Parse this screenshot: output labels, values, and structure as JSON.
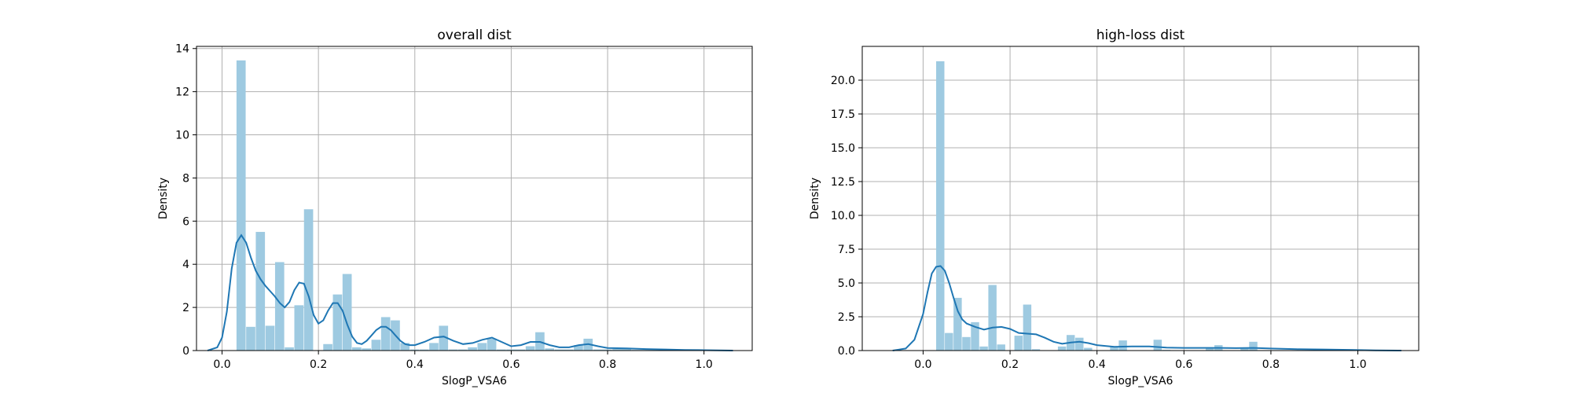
{
  "chart_data": [
    {
      "type": "histogram",
      "title": "overall dist",
      "xlabel": "SlogP_VSA6",
      "ylabel": "Density",
      "xlim": [
        -0.053,
        1.1
      ],
      "ylim": [
        0,
        14.1
      ],
      "xticks": [
        0.0,
        0.2,
        0.4,
        0.6,
        0.8,
        1.0
      ],
      "xtick_labels": [
        "0.0",
        "0.2",
        "0.4",
        "0.6",
        "0.8",
        "1.0"
      ],
      "yticks": [
        0,
        2,
        4,
        6,
        8,
        10,
        12,
        14
      ],
      "ytick_labels": [
        "0",
        "2",
        "4",
        "6",
        "8",
        "10",
        "12",
        "14"
      ],
      "grid": true,
      "bar_color": "#9ecae1",
      "line_color": "#1f77b4",
      "bins": [
        {
          "x0": 0.03,
          "x1": 0.05,
          "y": 13.45
        },
        {
          "x0": 0.05,
          "x1": 0.07,
          "y": 1.1
        },
        {
          "x0": 0.07,
          "x1": 0.09,
          "y": 5.5
        },
        {
          "x0": 0.09,
          "x1": 0.11,
          "y": 1.15
        },
        {
          "x0": 0.11,
          "x1": 0.13,
          "y": 4.1
        },
        {
          "x0": 0.13,
          "x1": 0.15,
          "y": 0.15
        },
        {
          "x0": 0.15,
          "x1": 0.17,
          "y": 2.1
        },
        {
          "x0": 0.17,
          "x1": 0.19,
          "y": 6.55
        },
        {
          "x0": 0.19,
          "x1": 0.21,
          "y": 0.0
        },
        {
          "x0": 0.21,
          "x1": 0.23,
          "y": 0.3
        },
        {
          "x0": 0.23,
          "x1": 0.25,
          "y": 2.6
        },
        {
          "x0": 0.25,
          "x1": 0.27,
          "y": 3.55
        },
        {
          "x0": 0.27,
          "x1": 0.29,
          "y": 0.15
        },
        {
          "x0": 0.29,
          "x1": 0.31,
          "y": 0.1
        },
        {
          "x0": 0.31,
          "x1": 0.33,
          "y": 0.5
        },
        {
          "x0": 0.33,
          "x1": 0.35,
          "y": 1.55
        },
        {
          "x0": 0.35,
          "x1": 0.37,
          "y": 1.4
        },
        {
          "x0": 0.37,
          "x1": 0.39,
          "y": 0.35
        },
        {
          "x0": 0.39,
          "x1": 0.41,
          "y": 0.05
        },
        {
          "x0": 0.41,
          "x1": 0.43,
          "y": 0.05
        },
        {
          "x0": 0.43,
          "x1": 0.45,
          "y": 0.35
        },
        {
          "x0": 0.45,
          "x1": 0.47,
          "y": 1.15
        },
        {
          "x0": 0.47,
          "x1": 0.49,
          "y": 0.05
        },
        {
          "x0": 0.49,
          "x1": 0.51,
          "y": 0.05
        },
        {
          "x0": 0.51,
          "x1": 0.53,
          "y": 0.15
        },
        {
          "x0": 0.53,
          "x1": 0.55,
          "y": 0.35
        },
        {
          "x0": 0.55,
          "x1": 0.57,
          "y": 0.55
        },
        {
          "x0": 0.57,
          "x1": 0.59,
          "y": 0.05
        },
        {
          "x0": 0.59,
          "x1": 0.63,
          "y": 0.05
        },
        {
          "x0": 0.63,
          "x1": 0.65,
          "y": 0.2
        },
        {
          "x0": 0.65,
          "x1": 0.67,
          "y": 0.85
        },
        {
          "x0": 0.67,
          "x1": 0.69,
          "y": 0.1
        },
        {
          "x0": 0.69,
          "x1": 0.73,
          "y": 0.05
        },
        {
          "x0": 0.73,
          "x1": 0.75,
          "y": 0.25
        },
        {
          "x0": 0.75,
          "x1": 0.77,
          "y": 0.55
        },
        {
          "x0": 0.77,
          "x1": 0.81,
          "y": 0.05
        },
        {
          "x0": 0.81,
          "x1": 0.85,
          "y": 0.08
        },
        {
          "x0": 0.85,
          "x1": 0.95,
          "y": 0.03
        },
        {
          "x0": 0.95,
          "x1": 1.03,
          "y": 0.02
        }
      ],
      "kde": {
        "x": [
          -0.03,
          -0.01,
          0.0,
          0.01,
          0.02,
          0.03,
          0.04,
          0.05,
          0.06,
          0.07,
          0.08,
          0.09,
          0.1,
          0.11,
          0.12,
          0.13,
          0.14,
          0.15,
          0.16,
          0.17,
          0.18,
          0.19,
          0.2,
          0.21,
          0.22,
          0.23,
          0.24,
          0.25,
          0.26,
          0.27,
          0.28,
          0.29,
          0.3,
          0.31,
          0.32,
          0.33,
          0.34,
          0.35,
          0.36,
          0.37,
          0.38,
          0.39,
          0.4,
          0.42,
          0.44,
          0.46,
          0.48,
          0.5,
          0.52,
          0.54,
          0.56,
          0.58,
          0.6,
          0.62,
          0.64,
          0.66,
          0.68,
          0.7,
          0.72,
          0.74,
          0.76,
          0.78,
          0.8,
          0.84,
          0.88,
          0.92,
          0.96,
          1.0,
          1.06
        ],
        "y": [
          0.0,
          0.15,
          0.6,
          1.8,
          3.8,
          5.0,
          5.35,
          5.0,
          4.3,
          3.7,
          3.3,
          3.0,
          2.75,
          2.5,
          2.2,
          2.0,
          2.25,
          2.8,
          3.15,
          3.1,
          2.5,
          1.65,
          1.25,
          1.4,
          1.85,
          2.2,
          2.2,
          1.85,
          1.2,
          0.65,
          0.35,
          0.3,
          0.45,
          0.7,
          0.95,
          1.1,
          1.1,
          0.95,
          0.7,
          0.45,
          0.3,
          0.25,
          0.25,
          0.4,
          0.6,
          0.65,
          0.45,
          0.3,
          0.35,
          0.5,
          0.6,
          0.4,
          0.2,
          0.25,
          0.4,
          0.4,
          0.25,
          0.15,
          0.15,
          0.25,
          0.3,
          0.2,
          0.12,
          0.1,
          0.07,
          0.05,
          0.03,
          0.02,
          0.0
        ]
      }
    },
    {
      "type": "histogram",
      "title": "high-loss dist",
      "xlabel": "SlogP_VSA6",
      "ylabel": "Density",
      "xlim": [
        -0.14,
        1.14
      ],
      "ylim": [
        0,
        22.5
      ],
      "xticks": [
        0.0,
        0.2,
        0.4,
        0.6,
        0.8,
        1.0
      ],
      "xtick_labels": [
        "0.0",
        "0.2",
        "0.4",
        "0.6",
        "0.8",
        "1.0"
      ],
      "yticks": [
        0,
        2.5,
        5.0,
        7.5,
        10.0,
        12.5,
        15.0,
        17.5,
        20.0
      ],
      "ytick_labels": [
        "0.0",
        "2.5",
        "5.0",
        "7.5",
        "10.0",
        "12.5",
        "15.0",
        "17.5",
        "20.0"
      ],
      "grid": true,
      "bar_color": "#9ecae1",
      "line_color": "#1f77b4",
      "bins": [
        {
          "x0": 0.03,
          "x1": 0.05,
          "y": 21.4
        },
        {
          "x0": 0.05,
          "x1": 0.07,
          "y": 1.3
        },
        {
          "x0": 0.07,
          "x1": 0.09,
          "y": 3.9
        },
        {
          "x0": 0.09,
          "x1": 0.11,
          "y": 1.0
        },
        {
          "x0": 0.11,
          "x1": 0.13,
          "y": 2.1
        },
        {
          "x0": 0.13,
          "x1": 0.15,
          "y": 0.3
        },
        {
          "x0": 0.15,
          "x1": 0.17,
          "y": 4.85
        },
        {
          "x0": 0.17,
          "x1": 0.19,
          "y": 0.45
        },
        {
          "x0": 0.19,
          "x1": 0.21,
          "y": 0.0
        },
        {
          "x0": 0.21,
          "x1": 0.23,
          "y": 1.1
        },
        {
          "x0": 0.23,
          "x1": 0.25,
          "y": 3.4
        },
        {
          "x0": 0.25,
          "x1": 0.27,
          "y": 0.1
        },
        {
          "x0": 0.27,
          "x1": 0.29,
          "y": 0.0
        },
        {
          "x0": 0.29,
          "x1": 0.31,
          "y": 0.0
        },
        {
          "x0": 0.31,
          "x1": 0.33,
          "y": 0.3
        },
        {
          "x0": 0.33,
          "x1": 0.35,
          "y": 1.15
        },
        {
          "x0": 0.35,
          "x1": 0.37,
          "y": 0.95
        },
        {
          "x0": 0.37,
          "x1": 0.39,
          "y": 0.2
        },
        {
          "x0": 0.43,
          "x1": 0.45,
          "y": 0.3
        },
        {
          "x0": 0.45,
          "x1": 0.47,
          "y": 0.75
        },
        {
          "x0": 0.53,
          "x1": 0.55,
          "y": 0.8
        },
        {
          "x0": 0.55,
          "x1": 0.57,
          "y": 0.05
        },
        {
          "x0": 0.65,
          "x1": 0.67,
          "y": 0.2
        },
        {
          "x0": 0.67,
          "x1": 0.69,
          "y": 0.4
        },
        {
          "x0": 0.73,
          "x1": 0.75,
          "y": 0.2
        },
        {
          "x0": 0.75,
          "x1": 0.77,
          "y": 0.65
        }
      ],
      "kde": {
        "x": [
          -0.07,
          -0.04,
          -0.02,
          0.0,
          0.01,
          0.02,
          0.03,
          0.04,
          0.05,
          0.06,
          0.07,
          0.08,
          0.09,
          0.1,
          0.12,
          0.14,
          0.16,
          0.18,
          0.2,
          0.22,
          0.24,
          0.26,
          0.28,
          0.3,
          0.32,
          0.34,
          0.36,
          0.38,
          0.4,
          0.44,
          0.48,
          0.52,
          0.56,
          0.6,
          0.64,
          0.68,
          0.72,
          0.76,
          0.8,
          0.86,
          0.92,
          0.98,
          1.04,
          1.1
        ],
        "y": [
          0.0,
          0.15,
          0.8,
          2.7,
          4.3,
          5.7,
          6.2,
          6.25,
          5.9,
          5.0,
          3.9,
          2.9,
          2.3,
          2.0,
          1.75,
          1.55,
          1.7,
          1.75,
          1.6,
          1.3,
          1.25,
          1.2,
          0.95,
          0.65,
          0.5,
          0.6,
          0.65,
          0.55,
          0.4,
          0.28,
          0.3,
          0.3,
          0.22,
          0.2,
          0.2,
          0.2,
          0.18,
          0.2,
          0.15,
          0.1,
          0.08,
          0.05,
          0.02,
          0.0
        ]
      }
    }
  ]
}
